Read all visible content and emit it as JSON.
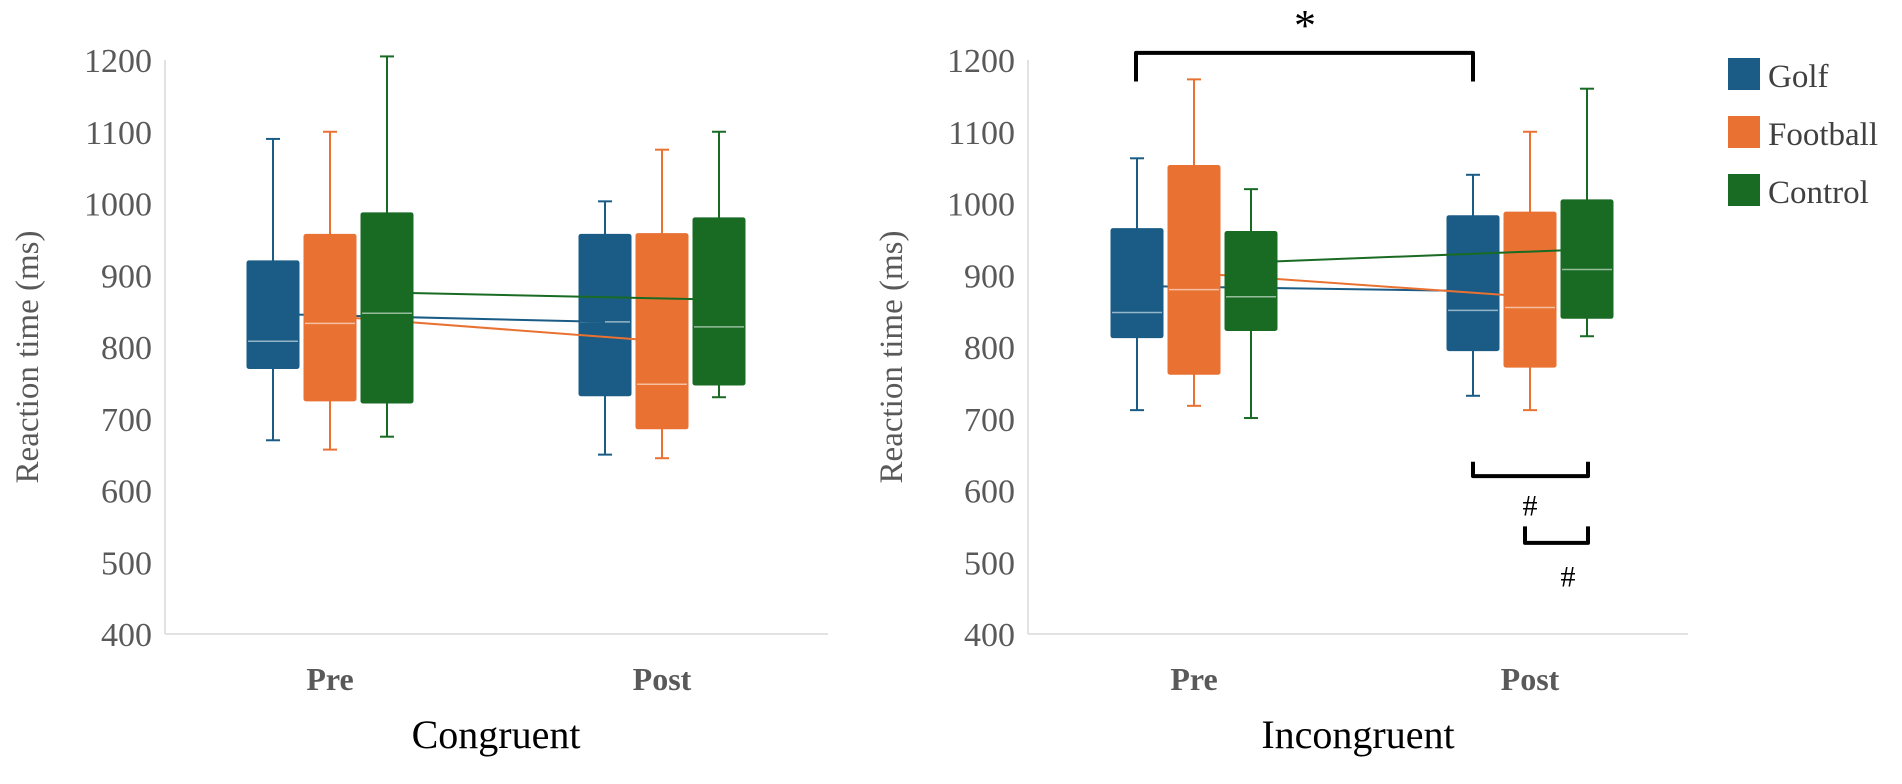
{
  "chart_data": [
    {
      "type": "box",
      "panel": "congruent",
      "xlabel": "Congruent",
      "ylabel": "Reaction time (ms)",
      "ylim": [
        400,
        1200
      ],
      "yticks": [
        "400",
        "500",
        "600",
        "700",
        "800",
        "900",
        "1000",
        "1100",
        "1200"
      ],
      "categories": [
        "Pre",
        "Post"
      ],
      "series": [
        {
          "name": "Golf",
          "color": "#1a5c85",
          "boxes": [
            {
              "min": 670,
              "q1": 770,
              "median": 808,
              "q3": 920,
              "max": 1090,
              "mean": 846
            },
            {
              "min": 650,
              "q1": 732,
              "median": 835,
              "q3": 957,
              "max": 1003,
              "mean": 835
            }
          ]
        },
        {
          "name": "Football",
          "color": "#e97132",
          "boxes": [
            {
              "min": 657,
              "q1": 725,
              "median": 833,
              "q3": 957,
              "max": 1100,
              "mean": 843
            },
            {
              "min": 645,
              "q1": 686,
              "median": 748,
              "q3": 958,
              "max": 1075,
              "mean": 808
            }
          ]
        },
        {
          "name": "Control",
          "color": "#196b24",
          "boxes": [
            {
              "min": 675,
              "q1": 722,
              "median": 847,
              "q3": 987,
              "max": 1205,
              "mean": 876
            },
            {
              "min": 730,
              "q1": 747,
              "median": 828,
              "q3": 980,
              "max": 1100,
              "mean": 866
            }
          ]
        }
      ],
      "annotations": []
    },
    {
      "type": "box",
      "panel": "incongruent",
      "xlabel": "Incongruent",
      "ylabel": "Reaction time (ms)",
      "ylim": [
        400,
        1200
      ],
      "yticks": [
        "400",
        "500",
        "600",
        "700",
        "800",
        "900",
        "1000",
        "1100",
        "1200"
      ],
      "categories": [
        "Pre",
        "Post"
      ],
      "series": [
        {
          "name": "Golf",
          "color": "#1a5c85",
          "boxes": [
            {
              "min": 712,
              "q1": 813,
              "median": 848,
              "q3": 965,
              "max": 1063,
              "mean": 885
            },
            {
              "min": 732,
              "q1": 795,
              "median": 851,
              "q3": 983,
              "max": 1040,
              "mean": 878
            }
          ]
        },
        {
          "name": "Football",
          "color": "#e97132",
          "boxes": [
            {
              "min": 718,
              "q1": 762,
              "median": 880,
              "q3": 1053,
              "max": 1173,
              "mean": 903
            },
            {
              "min": 712,
              "q1": 772,
              "median": 855,
              "q3": 988,
              "max": 1100,
              "mean": 870
            }
          ]
        },
        {
          "name": "Control",
          "color": "#196b24",
          "boxes": [
            {
              "min": 701,
              "q1": 823,
              "median": 870,
              "q3": 961,
              "max": 1020,
              "mean": 918
            },
            {
              "min": 815,
              "q1": 840,
              "median": 908,
              "q3": 1005,
              "max": 1160,
              "mean": 936
            }
          ]
        }
      ],
      "annotations": [
        {
          "symbol": "*",
          "description": "Pre vs Post (Golf)"
        },
        {
          "symbol": "#",
          "description": "Golf vs Control at Post"
        },
        {
          "symbol": "#",
          "description": "Football vs Control at Post"
        }
      ]
    }
  ],
  "legend": {
    "items": [
      {
        "label": "Golf",
        "color": "#1a5c85"
      },
      {
        "label": "Football",
        "color": "#e97132"
      },
      {
        "label": "Control",
        "color": "#196b24"
      }
    ]
  },
  "theme": {
    "axis_color": "#d9d9d9",
    "annotation_color": "#000000"
  }
}
